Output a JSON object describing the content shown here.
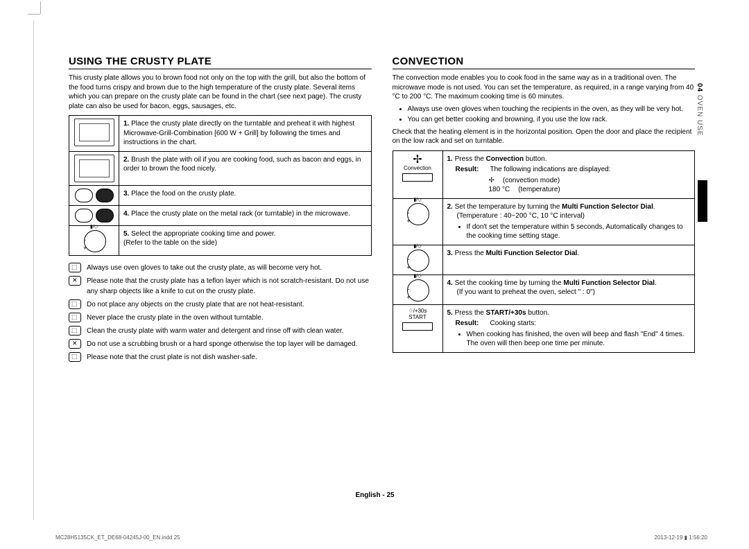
{
  "side_tab": {
    "num": "04",
    "label": "OVEN USE"
  },
  "left": {
    "heading": "USING THE CRUSTY PLATE",
    "intro": "This crusty plate allows you to brown food not only on the top with the grill, but also the bottom of the food turns crispy and brown due to the high temperature of the crusty plate. Several items which you can prepare on the crusty plate can be found in the chart (see next page). The crusty plate can also be used for bacon, eggs, sausages, etc.",
    "steps": [
      {
        "n": "1.",
        "t": "Place the crusty plate directly on the turntable and preheat it with highest Microwave-Grill-Combination [600 W + Grill] by following the times and instructions in the chart."
      },
      {
        "n": "2.",
        "t": "Brush the plate with oil if you are cooking food, such as bacon and eggs, in order to brown the food nicely."
      },
      {
        "n": "3.",
        "t": "Place the food on the crusty plate."
      },
      {
        "n": "4.",
        "t": "Place the crusty plate on the metal rack (or turntable) in the microwave."
      },
      {
        "n": "5.",
        "t": "Select the appropriate cooking time and power.\n(Refer to the table on the side)"
      }
    ],
    "notes": [
      "Always use oven gloves to take out the crusty plate, as will become very hot.",
      "Please note that the crusty plate has a teflon layer which is not scratch-resistant. Do not use any sharp objects like a knife to cut on the crusty plate.",
      "Do not place any objects on the crusty plate that are not heat-resistant.",
      "Never place the crusty plate in the oven without turntable.",
      "Clean the crusty plate with warm water and detergent and rinse off with clean water.",
      "Do not use a scrubbing brush or a hard sponge otherwise the top layer will be damaged.",
      "Please note that the crust plate is not dish washer-safe."
    ]
  },
  "right": {
    "heading": "CONVECTION",
    "intro": "The convection mode enables you to cook food in the same way as in a traditional oven. The microwave mode is not used. You can set the temperature, as required, in a range varying from 40 °C to 200 °C. The maximum cooking time is 60 minutes.",
    "bullets": [
      "Always use oven gloves when touching the recipients in the oven, as they will be very hot.",
      "You can get better cooking and browning, if you use the low rack."
    ],
    "check": "Check that the heating element is in the horizontal position. Open the door and place the recipient on the low rack and set on turntable.",
    "step1": {
      "n": "1.",
      "lead": "Press the ",
      "b": "Convection",
      "tail": " button.",
      "res_lbl": "Result:",
      "res_txt": "The following indications are displayed:",
      "ind1_sym": "✢",
      "ind1_txt": "(convection mode)",
      "ind2_val": "180 °C",
      "ind2_txt": "(temperature)"
    },
    "step2": {
      "n": "2.",
      "lead": "Set the temperature by turning the ",
      "b": "Multi Function Selector Dial",
      "tail": ".",
      "sub": "(Temperature : 40~200 °C, 10 °C interval)",
      "bullet": "If don't set the temperature within 5 seconds, Automatically changes to the cooking time setting stage."
    },
    "step3": {
      "n": "3.",
      "lead": "Press the ",
      "b": "Multi Function Selector Dial",
      "tail": "."
    },
    "step4": {
      "n": "4.",
      "lead": "Set the cooking time by turning the ",
      "b": "Multi Function Selector Dial",
      "tail": ".",
      "sub": "(If you want to preheat the oven, select \" : 0\")"
    },
    "step5": {
      "n": "5.",
      "lead": "Press the ",
      "b": "START/+30s",
      "tail": " button.",
      "res_lbl": "Result:",
      "res_txt": "Cooking starts:",
      "bullet": "When cooking has finished, the oven will beep and flash \"End\" 4 times. The oven will then beep one time per minute."
    },
    "start_icon": {
      "l1": "♢/+30s",
      "l2": "START"
    },
    "conv_icon": {
      "label": "Convection"
    }
  },
  "footer": {
    "lang": "English - 25"
  },
  "footline": {
    "left": "MC28H5135CK_ET_DE68-04245J-00_EN.indd   25",
    "right": "2013-12-19   ▮ 1:56:20"
  }
}
